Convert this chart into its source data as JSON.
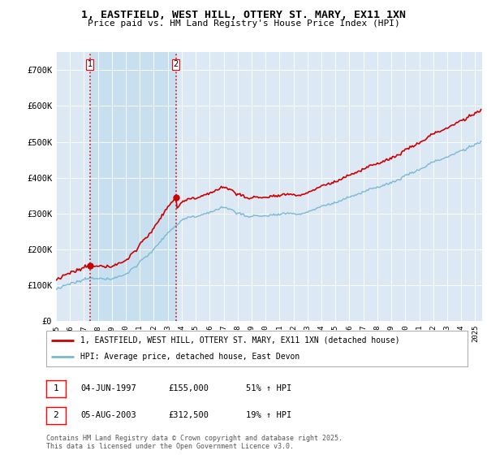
{
  "title": "1, EASTFIELD, WEST HILL, OTTERY ST. MARY, EX11 1XN",
  "subtitle": "Price paid vs. HM Land Registry's House Price Index (HPI)",
  "background_color": "#dce9f5",
  "plot_background": "#dce9f5",
  "ylim": [
    0,
    750000
  ],
  "yticks": [
    0,
    100000,
    200000,
    300000,
    400000,
    500000,
    600000,
    700000
  ],
  "ytick_labels": [
    "£0",
    "£100K",
    "£200K",
    "£300K",
    "£400K",
    "£500K",
    "£600K",
    "£700K"
  ],
  "hpi_color": "#7bb8d4",
  "price_color": "#cc0000",
  "vline_color": "#cc0000",
  "highlight_color": "#c8dff0",
  "transaction1_date": 1997.42,
  "transaction1_price": 155000,
  "transaction2_date": 2003.59,
  "transaction2_price": 312500,
  "legend_line1": "1, EASTFIELD, WEST HILL, OTTERY ST. MARY, EX11 1XN (detached house)",
  "legend_line2": "HPI: Average price, detached house, East Devon",
  "table_row1": [
    "1",
    "04-JUN-1997",
    "£155,000",
    "51% ↑ HPI"
  ],
  "table_row2": [
    "2",
    "05-AUG-2003",
    "£312,500",
    "19% ↑ HPI"
  ],
  "footnote": "Contains HM Land Registry data © Crown copyright and database right 2025.\nThis data is licensed under the Open Government Licence v3.0.",
  "xmin": 1995.0,
  "xmax": 2025.5
}
